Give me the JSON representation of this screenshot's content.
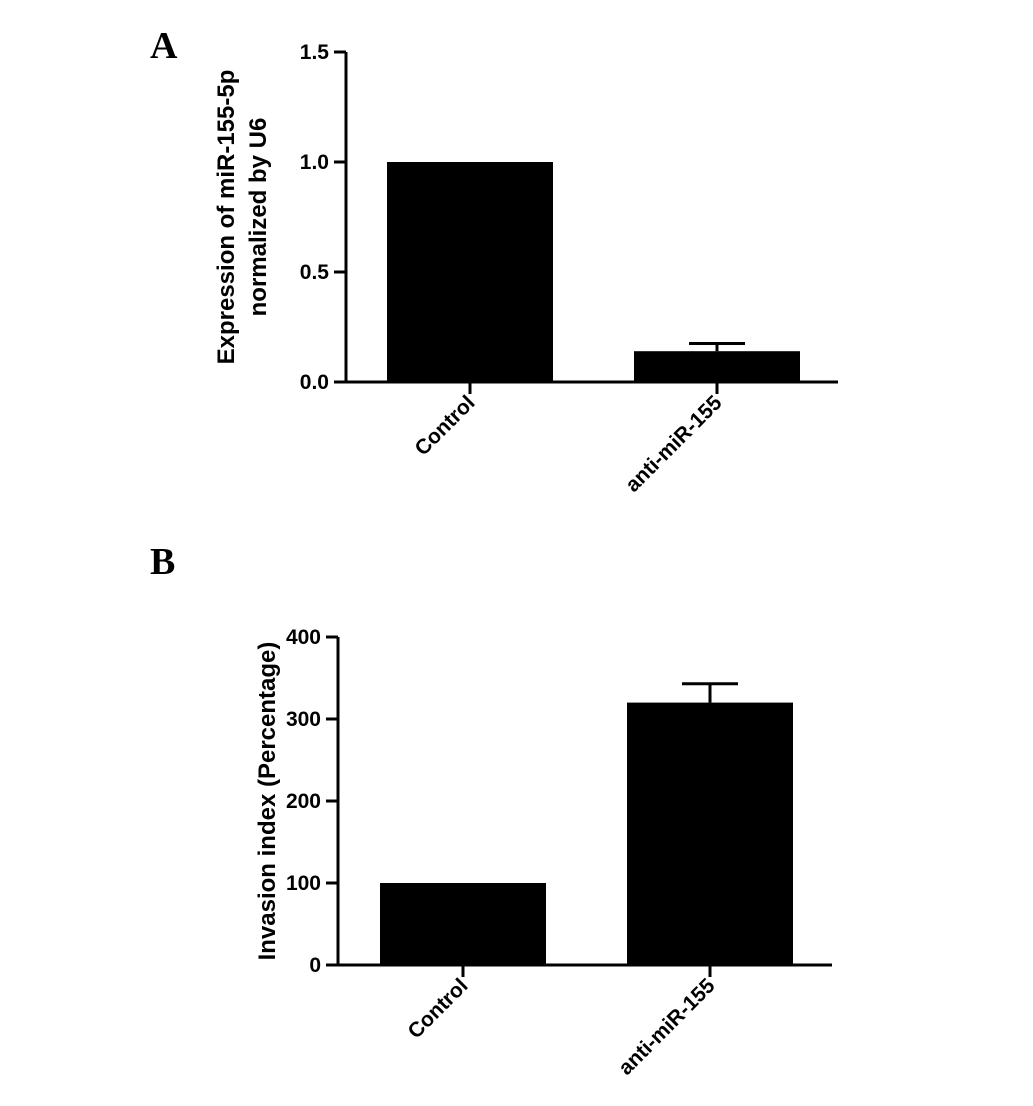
{
  "chart_data": [
    {
      "panel": "A",
      "type": "bar",
      "categories": [
        "Control",
        "anti-miR-155"
      ],
      "values": [
        1.0,
        0.14
      ],
      "errors": [
        0.0,
        0.035
      ],
      "ylabel_lines": [
        "Expression of miR-155-5p",
        "normalized by  U6"
      ],
      "ylim": [
        0,
        1.5
      ],
      "yticks": [
        0.0,
        0.5,
        1.0,
        1.5
      ],
      "ytick_labels": [
        "0.0",
        "0.5",
        "1.0",
        "1.5"
      ],
      "bar_color": "#000000",
      "grid": false
    },
    {
      "panel": "B",
      "type": "bar",
      "categories": [
        "Control",
        "anti-miR-155"
      ],
      "values": [
        100,
        320
      ],
      "errors": [
        0,
        23
      ],
      "ylabel_lines": [
        "Invasion index (Percentage)"
      ],
      "ylim": [
        0,
        400
      ],
      "yticks": [
        0,
        100,
        200,
        300,
        400
      ],
      "ytick_labels": [
        "0",
        "100",
        "200",
        "300",
        "400"
      ],
      "bar_color": "#000000",
      "grid": false
    }
  ]
}
